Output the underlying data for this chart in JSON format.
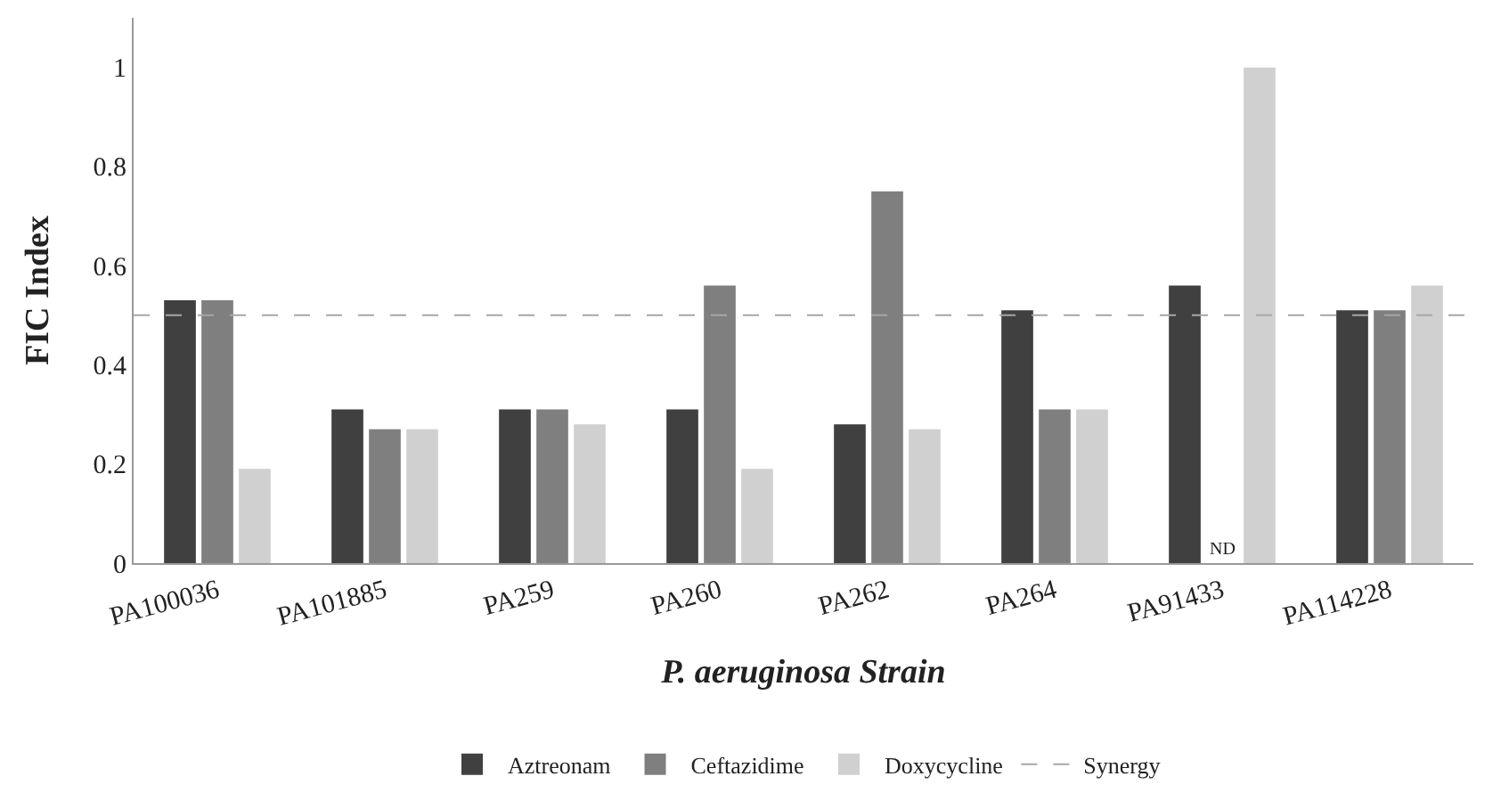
{
  "chart_data": {
    "type": "bar",
    "xlabel": "P. aeruginosa Strain",
    "ylabel": "FIC Index",
    "categories": [
      "PA100036",
      "PA101885",
      "PA259",
      "PA260",
      "PA262",
      "PA264",
      "PA91433",
      "PA114228"
    ],
    "series": [
      {
        "name": "Aztreonam",
        "color": "#404040",
        "values": [
          0.53,
          0.31,
          0.31,
          0.31,
          0.28,
          0.51,
          0.56,
          0.51
        ]
      },
      {
        "name": "Ceftazidime",
        "color": "#7f7f7f",
        "values": [
          0.53,
          0.27,
          0.31,
          0.56,
          0.75,
          0.31,
          null,
          0.51
        ]
      },
      {
        "name": "Doxycycline",
        "color": "#d0d0d0",
        "values": [
          0.19,
          0.27,
          0.28,
          0.19,
          0.27,
          0.31,
          1,
          0.56
        ]
      }
    ],
    "ylim": [
      0,
      1.1
    ],
    "yticks": [
      0,
      0.2,
      0.4,
      0.6,
      0.8,
      1
    ],
    "grid": false,
    "legend": "bottom",
    "ref_lines": [
      {
        "axis": "y",
        "value": 0.5,
        "label": "Synergy",
        "color": "#a6a6a6",
        "line_style": "dashed"
      }
    ],
    "annotations": [
      {
        "text": "ND",
        "x": "PA91433",
        "y": 0
      }
    ]
  }
}
